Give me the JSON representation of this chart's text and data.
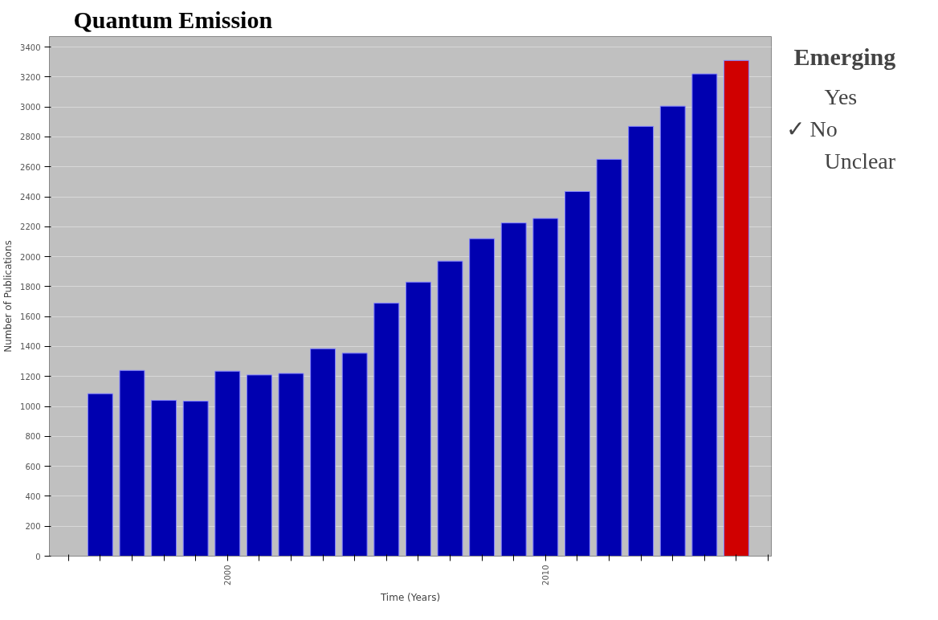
{
  "chart_data": {
    "type": "bar",
    "title": "Quantum Emission",
    "xlabel": "Time (Years)",
    "ylabel": "Number of Publications",
    "x": [
      1996,
      1997,
      1998,
      1999,
      2000,
      2001,
      2002,
      2003,
      2004,
      2005,
      2006,
      2007,
      2008,
      2009,
      2010,
      2011,
      2012,
      2013,
      2014,
      2015,
      2016
    ],
    "values": [
      1085,
      1240,
      1040,
      1035,
      1235,
      1210,
      1220,
      1385,
      1355,
      1690,
      1830,
      1970,
      2120,
      2225,
      2255,
      2435,
      2650,
      2870,
      3005,
      3220,
      3310
    ],
    "colors": [
      "#0000b0",
      "#0000b0",
      "#0000b0",
      "#0000b0",
      "#0000b0",
      "#0000b0",
      "#0000b0",
      "#0000b0",
      "#0000b0",
      "#0000b0",
      "#0000b0",
      "#0000b0",
      "#0000b0",
      "#0000b0",
      "#0000b0",
      "#0000b0",
      "#0000b0",
      "#0000b0",
      "#0000b0",
      "#0000b0",
      "#d00000"
    ],
    "xlim": [
      1994.4,
      2017.1
    ],
    "xticks": [
      {
        "value": 1995,
        "label": null
      },
      {
        "value": 1996,
        "label": null
      },
      {
        "value": 1997,
        "label": null
      },
      {
        "value": 1998,
        "label": null
      },
      {
        "value": 1999,
        "label": null
      },
      2000,
      {
        "value": 2001,
        "label": null
      },
      {
        "value": 2002,
        "label": null
      },
      {
        "value": 2003,
        "label": null
      },
      {
        "value": 2004,
        "label": null
      },
      {
        "value": 2005,
        "label": null
      },
      {
        "value": 2006,
        "label": null
      },
      {
        "value": 2007,
        "label": null
      },
      {
        "value": 2008,
        "label": null
      },
      {
        "value": 2009,
        "label": null
      },
      2010,
      {
        "value": 2011,
        "label": null
      },
      {
        "value": 2012,
        "label": null
      },
      {
        "value": 2013,
        "label": null
      },
      {
        "value": 2014,
        "label": null
      },
      {
        "value": 2015,
        "label": null
      },
      {
        "value": 2016,
        "label": null
      },
      {
        "value": 2017,
        "label": null
      }
    ],
    "ylim": [
      0,
      3470
    ],
    "yticks": [
      0,
      200,
      400,
      600,
      800,
      1000,
      1200,
      1400,
      1600,
      1800,
      2000,
      2200,
      2400,
      2600,
      2800,
      3000,
      3200,
      3400
    ],
    "grid": "y",
    "annotations": [
      "Emerging",
      "Yes",
      "✓ No",
      "Unclear"
    ]
  }
}
